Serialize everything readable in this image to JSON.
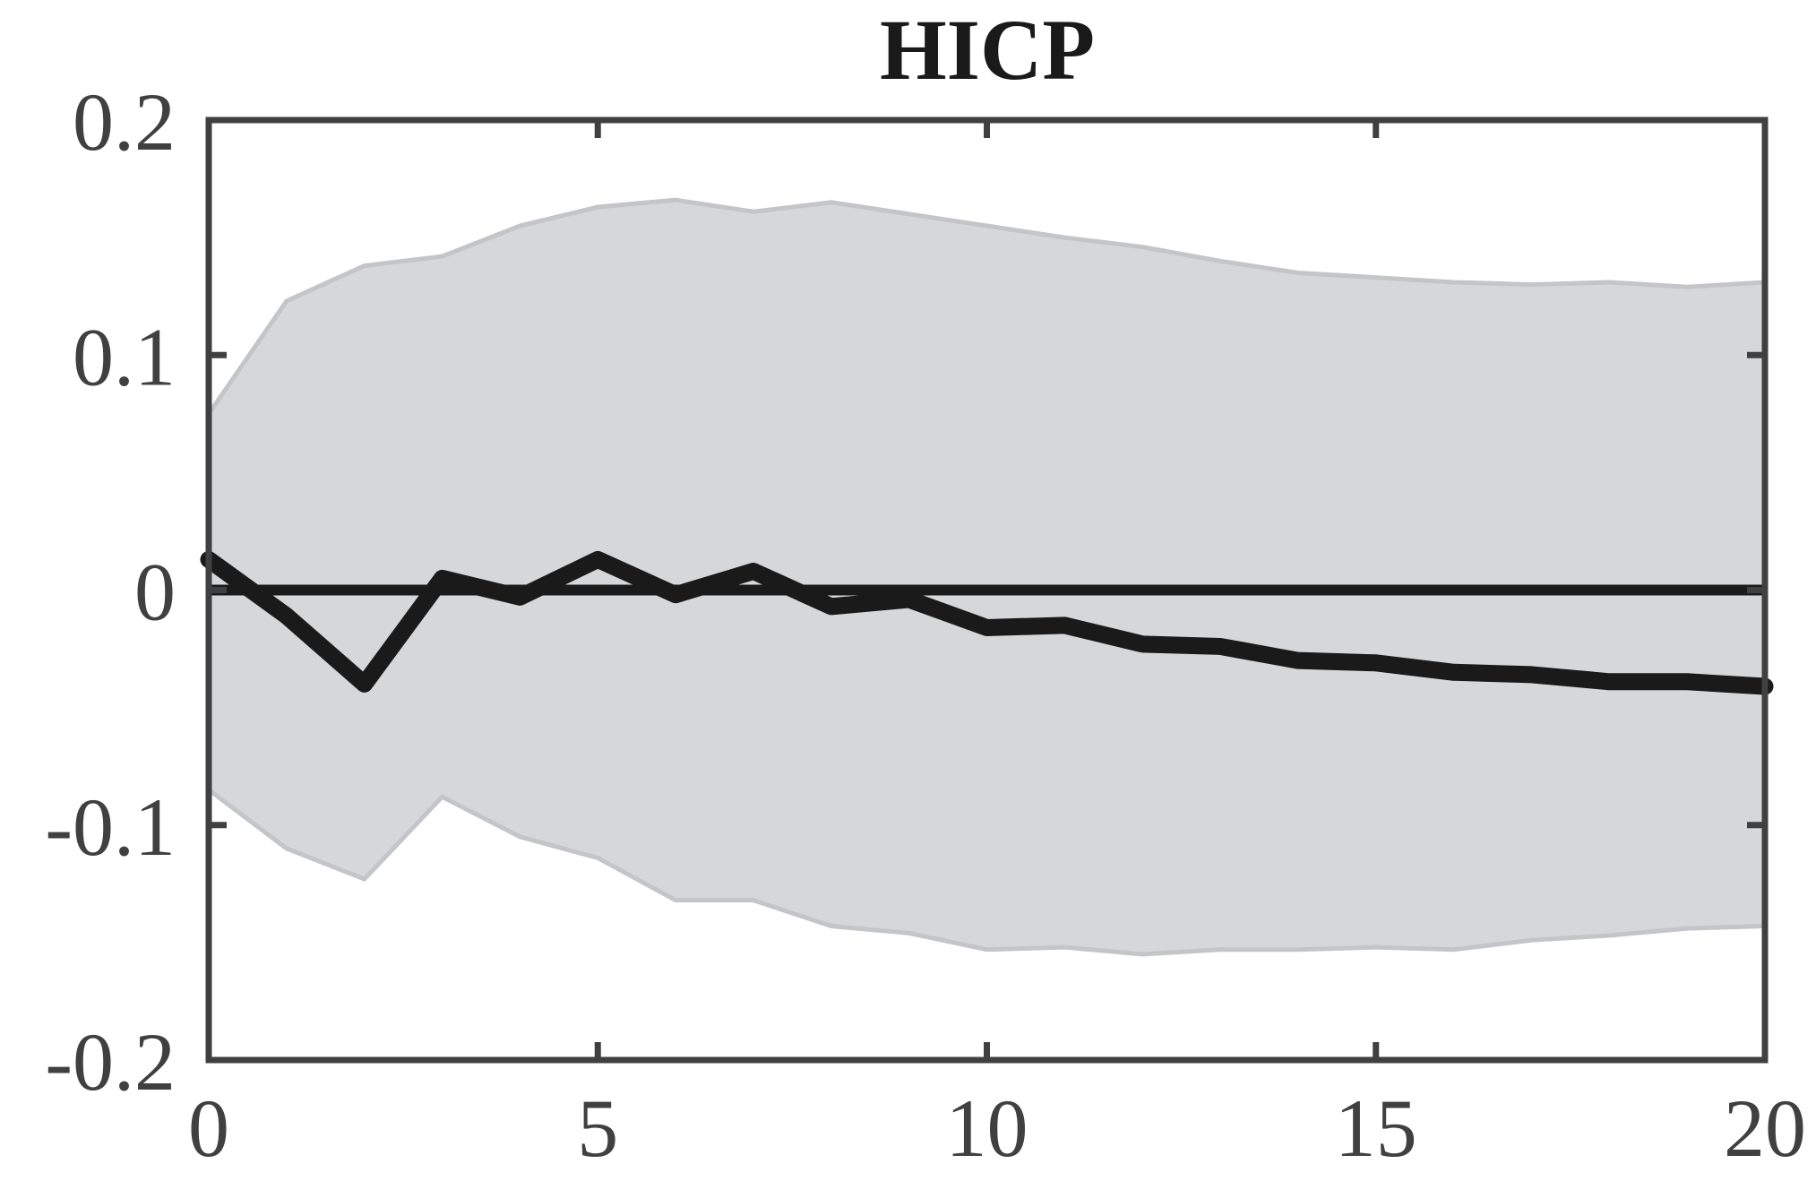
{
  "chart_data": {
    "type": "area",
    "title": "HICP",
    "xlabel": "",
    "ylabel": "",
    "xlim": [
      0,
      20
    ],
    "ylim": [
      -0.2,
      0.2
    ],
    "x_ticks": [
      0,
      5,
      10,
      15,
      20
    ],
    "x_tick_labels": [
      "0",
      "5",
      "10",
      "15",
      "20"
    ],
    "y_ticks": [
      -0.2,
      -0.1,
      0,
      0.1,
      0.2
    ],
    "y_tick_labels": [
      "-0.2",
      "-0.1",
      "0",
      "0.1",
      "0.2"
    ],
    "grid": false,
    "legend": "none",
    "x": [
      0,
      1,
      2,
      3,
      4,
      5,
      6,
      7,
      8,
      9,
      10,
      11,
      12,
      13,
      14,
      15,
      16,
      17,
      18,
      19,
      20
    ],
    "series": [
      {
        "role": "median",
        "values": [
          0.013,
          -0.011,
          -0.04,
          0.005,
          -0.003,
          0.013,
          -0.002,
          0.008,
          -0.007,
          -0.004,
          -0.016,
          -0.015,
          -0.023,
          -0.024,
          -0.03,
          -0.031,
          -0.035,
          -0.036,
          -0.039,
          -0.039,
          -0.041
        ]
      },
      {
        "role": "band-upper",
        "values": [
          0.075,
          0.123,
          0.138,
          0.142,
          0.155,
          0.163,
          0.166,
          0.161,
          0.165,
          0.16,
          0.155,
          0.15,
          0.146,
          0.14,
          0.135,
          0.133,
          0.131,
          0.13,
          0.131,
          0.129,
          0.131
        ]
      },
      {
        "role": "band-lower",
        "values": [
          -0.085,
          -0.11,
          -0.123,
          -0.088,
          -0.105,
          -0.114,
          -0.132,
          -0.132,
          -0.143,
          -0.146,
          -0.153,
          -0.152,
          -0.155,
          -0.153,
          -0.153,
          -0.152,
          -0.153,
          -0.149,
          -0.147,
          -0.144,
          -0.143
        ]
      }
    ],
    "zero_line": 0,
    "colors": {
      "band_fill": "#d6d7d9",
      "band_edge": "#c4c5c8",
      "median_line": "#1a1a1a",
      "zero_line": "#1a1a1a",
      "axes": "#404040"
    }
  }
}
